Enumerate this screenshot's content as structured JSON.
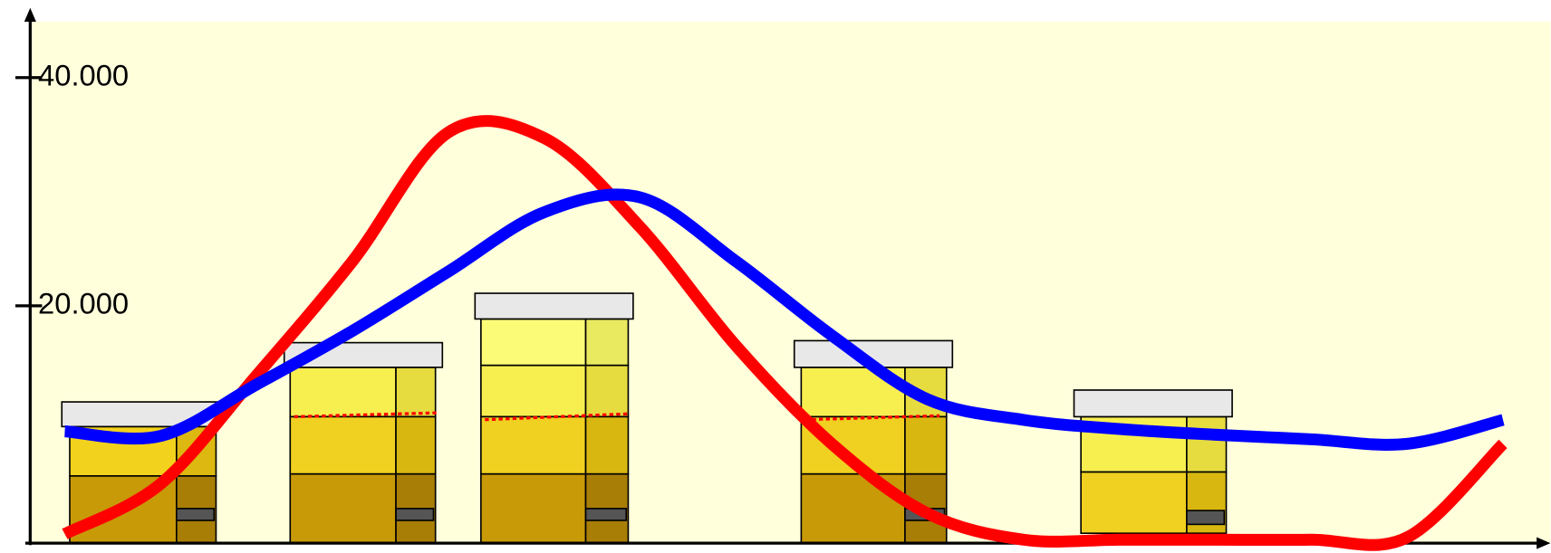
{
  "chart_data": {
    "type": "line",
    "categories": [
      null,
      null,
      null,
      null,
      null,
      null,
      null,
      null,
      null,
      null,
      null,
      null,
      null,
      null,
      null,
      null
    ],
    "series": [
      {
        "color": "#ff0000",
        "values": [
          0,
          4400,
          13900,
          23900,
          35200,
          34700,
          26900,
          16500,
          7900,
          1800,
          -500,
          -500,
          -500,
          -500,
          -300,
          7900
        ]
      },
      {
        "color": "#0000ff",
        "values": [
          9000,
          8600,
          13100,
          17800,
          23000,
          28200,
          29500,
          23900,
          17400,
          11800,
          10000,
          9200,
          8700,
          8300,
          7900,
          10000
        ]
      }
    ],
    "ylim": [
      -800,
      45500
    ],
    "yticks": [
      {
        "value": 20000,
        "label": "20.000"
      },
      {
        "value": 40000,
        "label": "40.000"
      }
    ]
  }
}
